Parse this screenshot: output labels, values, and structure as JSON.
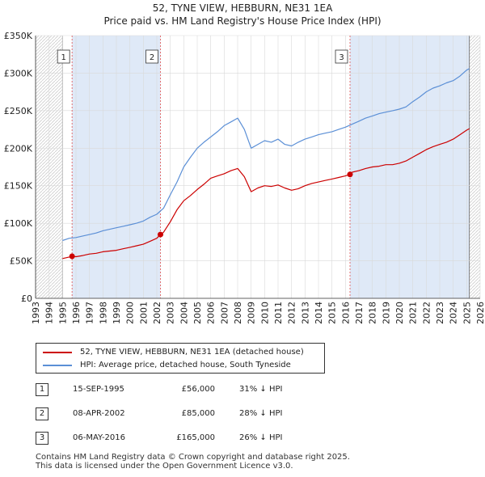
{
  "title": {
    "line1": "52, TYNE VIEW, HEBBURN, NE31 1EA",
    "line2": "Price paid vs. HM Land Registry's House Price Index (HPI)"
  },
  "colors": {
    "price_line": "#cc0000",
    "hpi_line": "#5b8fd6",
    "shade": "#dfe9f7",
    "grid": "#d9d9d9",
    "marker_line": "#e06060"
  },
  "legend": {
    "price_label": "52, TYNE VIEW, HEBBURN, NE31 1EA (detached house)",
    "hpi_label": "HPI: Average price, detached house, South Tyneside"
  },
  "sales": [
    {
      "num": "1",
      "date": "15-SEP-1995",
      "price": "£56,000",
      "hpi": "31% ↓ HPI"
    },
    {
      "num": "2",
      "date": "08-APR-2002",
      "price": "£85,000",
      "hpi": "28% ↓ HPI"
    },
    {
      "num": "3",
      "date": "06-MAY-2016",
      "price": "£165,000",
      "hpi": "26% ↓ HPI"
    }
  ],
  "footer": {
    "line1": "Contains HM Land Registry data © Crown copyright and database right 2025.",
    "line2": "This data is licensed under the Open Government Licence v3.0."
  },
  "chart_data": {
    "type": "line",
    "xlim": [
      1993,
      2026
    ],
    "ylim": [
      0,
      350000
    ],
    "x_ticks": [
      1993,
      1994,
      1995,
      1996,
      1997,
      1998,
      1999,
      2000,
      2001,
      2002,
      2003,
      2004,
      2005,
      2006,
      2007,
      2008,
      2009,
      2010,
      2011,
      2012,
      2013,
      2014,
      2015,
      2016,
      2017,
      2018,
      2019,
      2020,
      2021,
      2022,
      2023,
      2024,
      2025,
      2026
    ],
    "y_ticks": [
      {
        "value": 0,
        "label": "£0"
      },
      {
        "value": 50000,
        "label": "£50K"
      },
      {
        "value": 100000,
        "label": "£100K"
      },
      {
        "value": 150000,
        "label": "£150K"
      },
      {
        "value": 200000,
        "label": "£200K"
      },
      {
        "value": 250000,
        "label": "£250K"
      },
      {
        "value": 300000,
        "label": "£300K"
      },
      {
        "value": 350000,
        "label": "£350K"
      }
    ],
    "data_start": 1995.0,
    "data_end": 2025.2,
    "shaded_periods": [
      [
        1995.71,
        2002.27
      ],
      [
        2016.34,
        2025.2
      ]
    ],
    "sale_points": [
      {
        "label": "1",
        "x": 1995.71,
        "y": 56000
      },
      {
        "label": "2",
        "x": 2002.27,
        "y": 85000
      },
      {
        "label": "3",
        "x": 2016.34,
        "y": 165000
      }
    ],
    "series": [
      {
        "name": "HPI: Average price, detached house, South Tyneside",
        "color": "#5b8fd6",
        "x": [
          1995.0,
          1995.5,
          1996.0,
          1996.5,
          1997.0,
          1997.5,
          1998.0,
          1998.5,
          1999.0,
          1999.5,
          2000.0,
          2000.5,
          2001.0,
          2001.5,
          2002.0,
          2002.5,
          2003.0,
          2003.5,
          2004.0,
          2004.5,
          2005.0,
          2005.5,
          2006.0,
          2006.5,
          2007.0,
          2007.5,
          2008.0,
          2008.5,
          2009.0,
          2009.5,
          2010.0,
          2010.5,
          2011.0,
          2011.5,
          2012.0,
          2012.5,
          2013.0,
          2013.5,
          2014.0,
          2014.5,
          2015.0,
          2015.5,
          2016.0,
          2016.5,
          2017.0,
          2017.5,
          2018.0,
          2018.5,
          2019.0,
          2019.5,
          2020.0,
          2020.5,
          2021.0,
          2021.5,
          2022.0,
          2022.5,
          2023.0,
          2023.5,
          2024.0,
          2024.5,
          2025.0,
          2025.2
        ],
        "y": [
          77000,
          80000,
          81000,
          83000,
          85000,
          87000,
          90000,
          92000,
          94000,
          96000,
          98000,
          100000,
          103000,
          108000,
          112000,
          120000,
          138000,
          155000,
          175000,
          188000,
          200000,
          208000,
          215000,
          222000,
          230000,
          235000,
          240000,
          225000,
          200000,
          205000,
          210000,
          208000,
          212000,
          205000,
          203000,
          208000,
          212000,
          215000,
          218000,
          220000,
          222000,
          225000,
          228000,
          232000,
          236000,
          240000,
          243000,
          246000,
          248000,
          250000,
          252000,
          255000,
          262000,
          268000,
          275000,
          280000,
          283000,
          287000,
          290000,
          296000,
          304000,
          306000
        ]
      },
      {
        "name": "52, TYNE VIEW, HEBBURN, NE31 1EA (detached house)",
        "color": "#cc0000",
        "x": [
          1995.0,
          1995.5,
          1995.71,
          1996.0,
          1996.5,
          1997.0,
          1997.5,
          1998.0,
          1998.5,
          1999.0,
          1999.5,
          2000.0,
          2000.5,
          2001.0,
          2001.5,
          2002.0,
          2002.27,
          2002.5,
          2003.0,
          2003.5,
          2004.0,
          2004.5,
          2005.0,
          2005.5,
          2006.0,
          2006.5,
          2007.0,
          2007.5,
          2008.0,
          2008.5,
          2009.0,
          2009.5,
          2010.0,
          2010.5,
          2011.0,
          2011.5,
          2012.0,
          2012.5,
          2013.0,
          2013.5,
          2014.0,
          2014.5,
          2015.0,
          2015.5,
          2016.0,
          2016.34,
          2016.5,
          2017.0,
          2017.5,
          2018.0,
          2018.5,
          2019.0,
          2019.5,
          2020.0,
          2020.5,
          2021.0,
          2021.5,
          2022.0,
          2022.5,
          2023.0,
          2023.5,
          2024.0,
          2024.5,
          2025.0,
          2025.2
        ],
        "y": [
          53000,
          55000,
          56000,
          55500,
          57000,
          59000,
          60000,
          62000,
          63000,
          64000,
          66000,
          68000,
          70000,
          72000,
          76000,
          80000,
          85000,
          88000,
          102000,
          118000,
          130000,
          137000,
          145000,
          152000,
          160000,
          163000,
          166000,
          170000,
          173000,
          162000,
          142000,
          147000,
          150000,
          149000,
          151000,
          147000,
          144000,
          146000,
          150000,
          153000,
          155000,
          157000,
          159000,
          161000,
          163000,
          165000,
          168000,
          170000,
          173000,
          175000,
          176000,
          178000,
          178000,
          180000,
          183000,
          188000,
          193000,
          198000,
          202000,
          205000,
          208000,
          212000,
          218000,
          224000,
          226000
        ]
      }
    ]
  }
}
